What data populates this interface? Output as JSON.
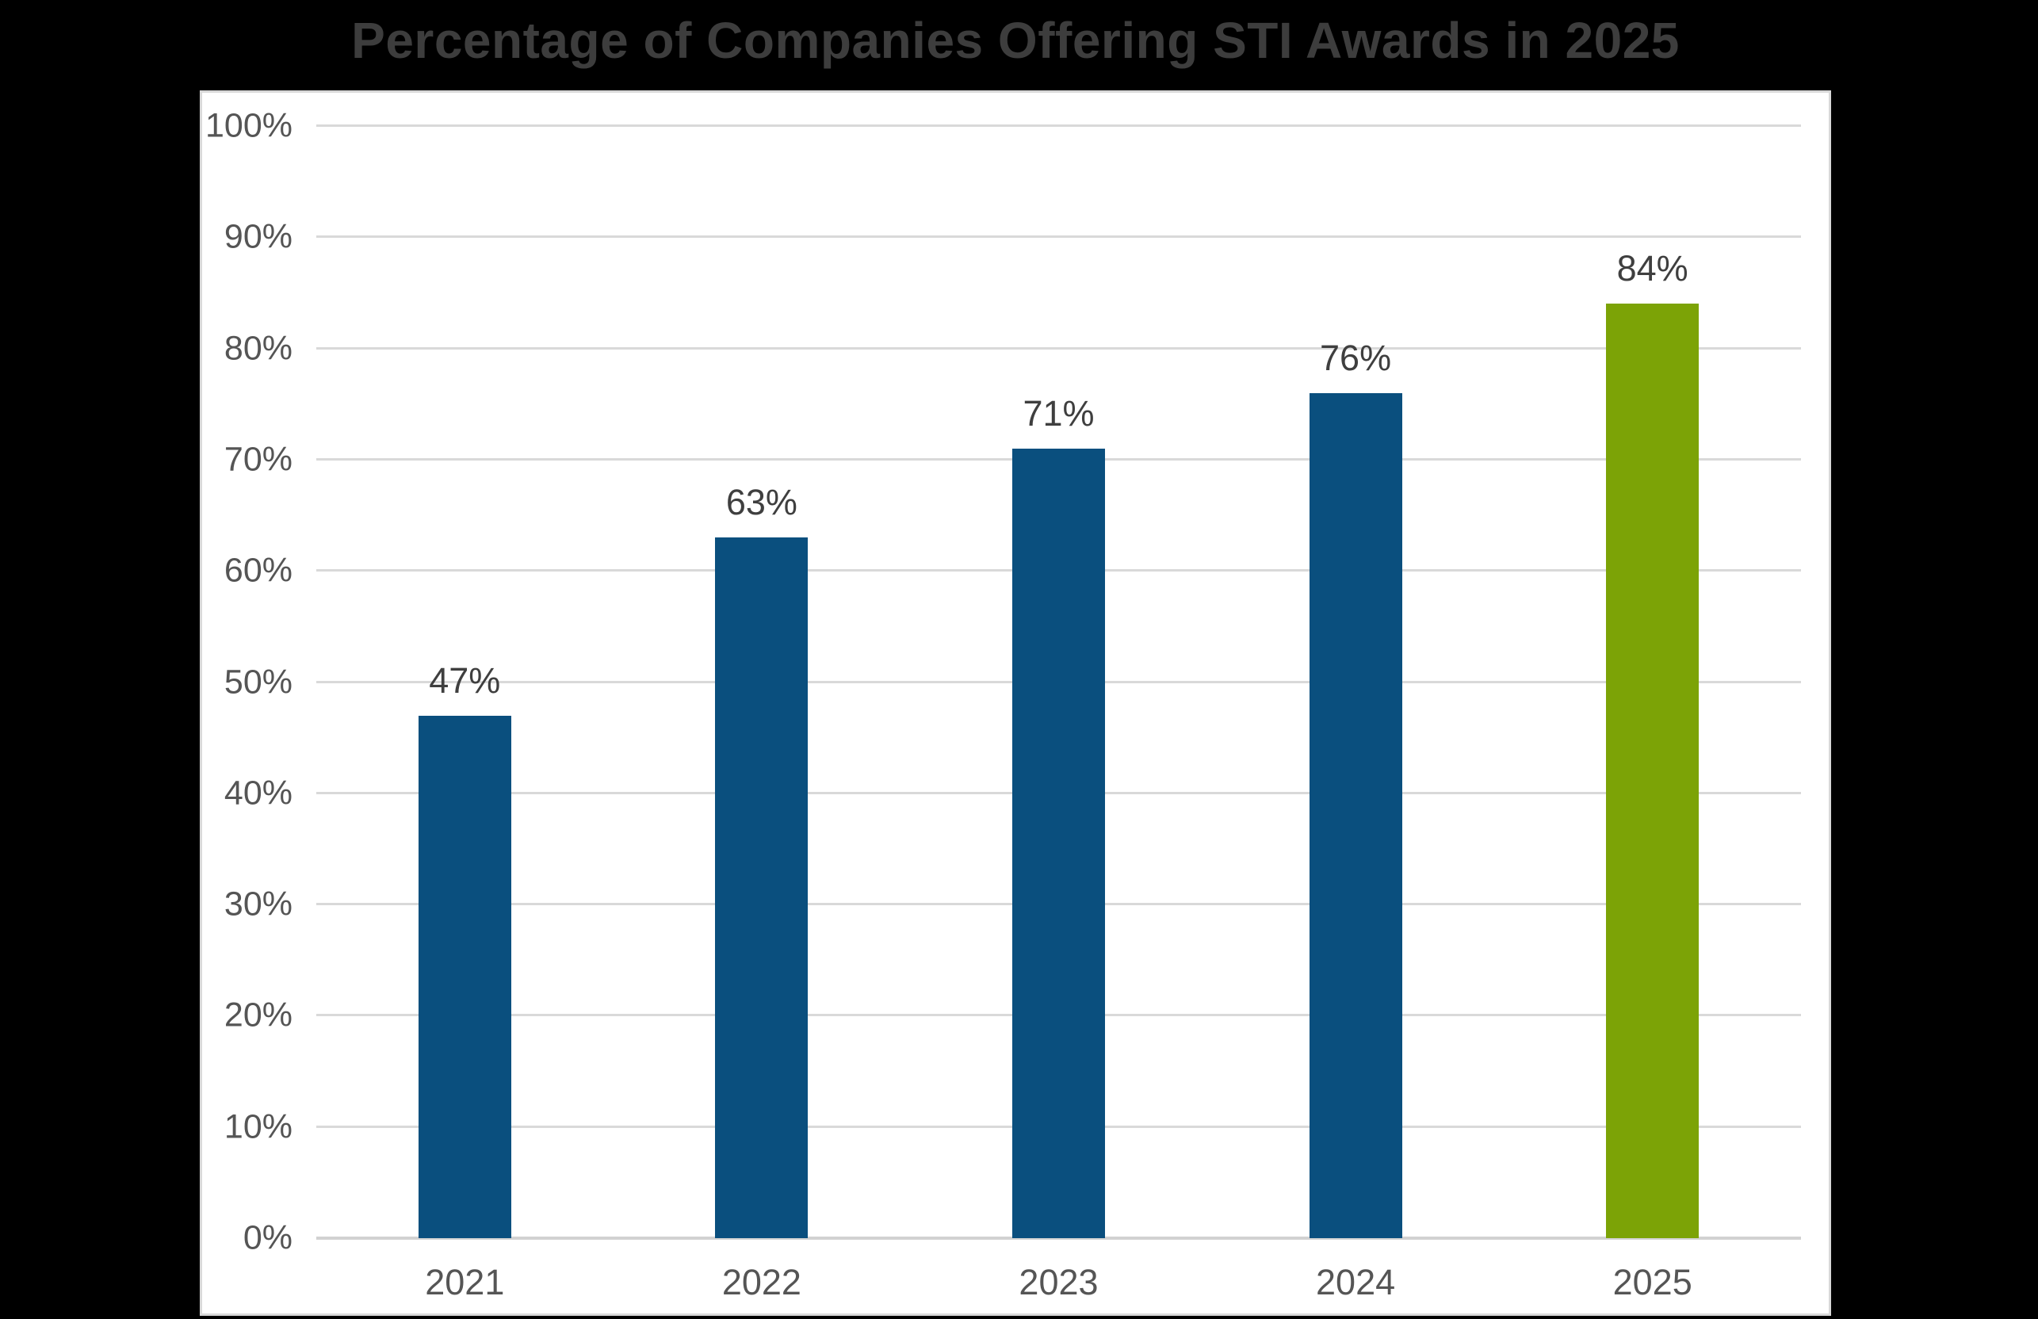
{
  "title": "Percentage of Companies Offering STI Awards in 2025",
  "chart_data": {
    "type": "bar",
    "title": "Percentage of Companies Offering STI Awards in 2025",
    "categories": [
      "2021",
      "2022",
      "2023",
      "2024",
      "2025"
    ],
    "values": [
      47,
      63,
      71,
      76,
      84
    ],
    "value_labels": [
      "47%",
      "63%",
      "71%",
      "76%",
      "84%"
    ],
    "bar_colors": [
      "#0a4f7e",
      "#0a4f7e",
      "#0a4f7e",
      "#0a4f7e",
      "#7ca306"
    ],
    "xlabel": "",
    "ylabel": "",
    "ylim": [
      0,
      100
    ],
    "y_ticks": [
      "0%",
      "10%",
      "20%",
      "30%",
      "40%",
      "50%",
      "60%",
      "70%",
      "80%",
      "90%",
      "100%"
    ],
    "grid": true,
    "legend": "none"
  },
  "colors": {
    "background": "#000000",
    "panel": "#ffffff",
    "panel_border": "#d9d9d9",
    "gridline": "#d9d9d9",
    "title_text": "#3d3d3d",
    "axis_text": "#555555",
    "data_label_text": "#3f3f3f",
    "bar_blue": "#0a4f7e",
    "bar_green": "#7ca306"
  }
}
